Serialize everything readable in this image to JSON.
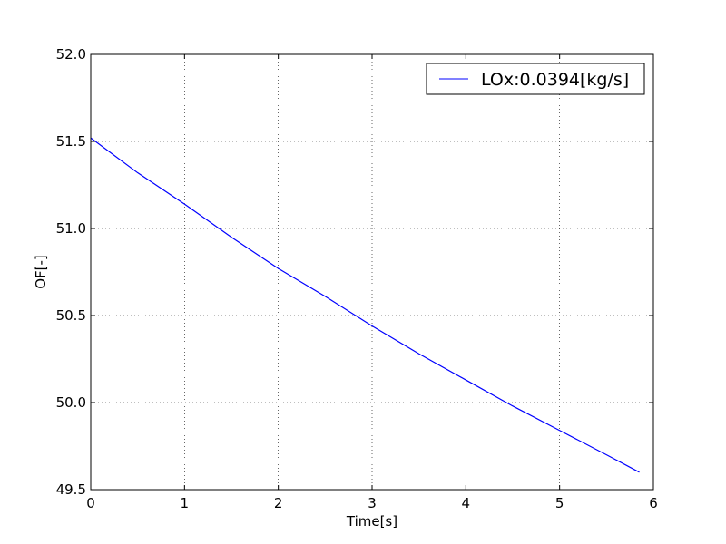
{
  "chart_data": {
    "type": "line",
    "title": "",
    "xlabel": "Time[s]",
    "ylabel": "OF[-]",
    "xlim": [
      0,
      6
    ],
    "ylim": [
      49.5,
      52.0
    ],
    "xticks": [
      0,
      1,
      2,
      3,
      4,
      5,
      6
    ],
    "yticks": [
      49.5,
      50.0,
      50.5,
      51.0,
      51.5,
      52.0
    ],
    "xtick_labels": [
      "0",
      "1",
      "2",
      "3",
      "4",
      "5",
      "6"
    ],
    "ytick_labels": [
      "49.5",
      "50.0",
      "50.5",
      "51.0",
      "51.5",
      "52.0"
    ],
    "grid": true,
    "legend_position": "top-right",
    "series": [
      {
        "name": "LOx:0.0394[kg/s]",
        "color": "#0000ff",
        "x": [
          0.0,
          0.5,
          1.0,
          1.5,
          2.0,
          2.5,
          3.0,
          3.5,
          4.0,
          4.5,
          5.0,
          5.5,
          5.85
        ],
        "y": [
          51.52,
          51.32,
          51.14,
          50.95,
          50.77,
          50.61,
          50.44,
          50.28,
          50.13,
          49.98,
          49.84,
          49.7,
          49.6
        ]
      }
    ]
  }
}
